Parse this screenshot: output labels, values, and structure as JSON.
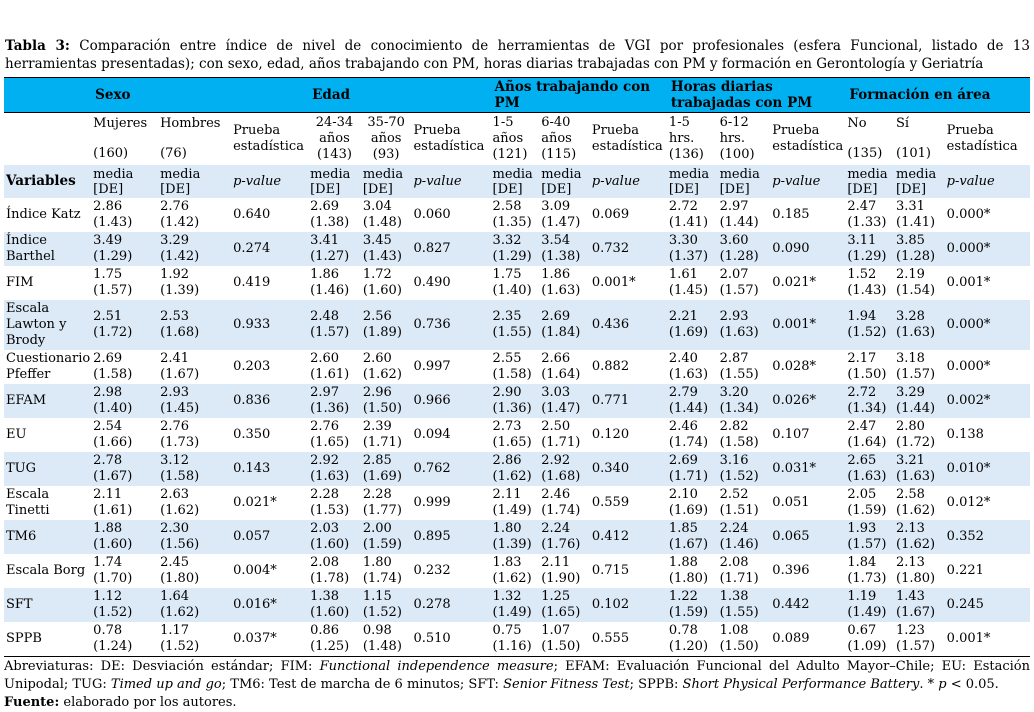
{
  "title": {
    "label": "Tabla 3:",
    "text": " Comparación entre índice de nivel de conocimiento de herramientas de VGI por profesionales (esfera Funcional, listado de 13 herramientas presentadas); con sexo, edad, años trabajando con PM, horas diarias trabajadas con PM y formación en Gerontología y Geriatría"
  },
  "colors": {
    "header_band": "#00b0f0",
    "row_stripe": "#dce9f6"
  },
  "table": {
    "groups": [
      {
        "label": "Sexo"
      },
      {
        "label": "Edad"
      },
      {
        "label": "Años trabajando con PM"
      },
      {
        "label": "Horas diarias trabajadas con PM"
      },
      {
        "label": "Formación en área"
      }
    ],
    "subheaders": [
      {
        "lines": [
          "Mujeres",
          "(160)"
        ],
        "kind": "cat2"
      },
      {
        "lines": [
          "Hombres",
          "(76)"
        ],
        "kind": "cat2"
      },
      {
        "lines": [
          "Prueba",
          "estadística"
        ],
        "kind": "prueba"
      },
      {
        "lines": [
          "24-34",
          "años",
          "(143)"
        ],
        "kind": "cat3c"
      },
      {
        "lines": [
          "35-70",
          "años",
          "(93)"
        ],
        "kind": "cat3c"
      },
      {
        "lines": [
          "Prueba",
          "estadística"
        ],
        "kind": "prueba"
      },
      {
        "lines": [
          "1-5",
          "años",
          "(121)"
        ],
        "kind": "cat3"
      },
      {
        "lines": [
          "6-40",
          "años",
          "(115)"
        ],
        "kind": "cat3"
      },
      {
        "lines": [
          "Prueba",
          "estadística"
        ],
        "kind": "prueba"
      },
      {
        "lines": [
          "1-5",
          "hrs.",
          "(136)"
        ],
        "kind": "cat3"
      },
      {
        "lines": [
          "6-12",
          "hrs.",
          "(100)"
        ],
        "kind": "cat3"
      },
      {
        "lines": [
          "Prueba",
          "estadística"
        ],
        "kind": "prueba"
      },
      {
        "lines": [
          "No",
          "(135)"
        ],
        "kind": "cat2"
      },
      {
        "lines": [
          "Sí",
          "(101)"
        ],
        "kind": "cat2"
      },
      {
        "lines": [
          "Prueba",
          "estadística"
        ],
        "kind": "prueba"
      }
    ],
    "variables_label": "Variables",
    "media_lines": [
      "media",
      "[DE]"
    ],
    "pvalue_label": "p-value",
    "rows": [
      {
        "name_lines": [
          "Índice Katz"
        ],
        "cells": [
          [
            "2.86",
            "(1.43)"
          ],
          [
            "2.76",
            "(1.42)"
          ],
          [
            "0.640"
          ],
          [
            "2.69",
            "(1.38)"
          ],
          [
            "3.04",
            "(1.48)"
          ],
          [
            "0.060"
          ],
          [
            "2.58",
            "(1.35)"
          ],
          [
            "3.09",
            "(1.47)"
          ],
          [
            "0.069"
          ],
          [
            "2.72",
            "(1.41)"
          ],
          [
            "2.97",
            "(1.44)"
          ],
          [
            "0.185"
          ],
          [
            "2.47",
            "(1.33)"
          ],
          [
            "3.31",
            "(1.41)"
          ],
          [
            "0.000*"
          ]
        ]
      },
      {
        "name_lines": [
          "Índice",
          "Barthel"
        ],
        "cells": [
          [
            "3.49",
            "(1.29)"
          ],
          [
            "3.29",
            "(1.42)"
          ],
          [
            "0.274"
          ],
          [
            "3.41",
            "(1.27)"
          ],
          [
            "3.45",
            "(1.43)"
          ],
          [
            "0.827"
          ],
          [
            "3.32",
            "(1.29)"
          ],
          [
            "3.54",
            "(1.38)"
          ],
          [
            "0.732"
          ],
          [
            "3.30",
            "(1.37)"
          ],
          [
            "3.60",
            "(1.28)"
          ],
          [
            "0.090"
          ],
          [
            "3.11",
            "(1.29)"
          ],
          [
            "3.85",
            "(1.28)"
          ],
          [
            "0.000*"
          ]
        ]
      },
      {
        "name_lines": [
          "FIM"
        ],
        "cells": [
          [
            "1.75",
            "(1.57)"
          ],
          [
            "1.92",
            "(1.39)"
          ],
          [
            "0.419"
          ],
          [
            "1.86",
            "(1.46)"
          ],
          [
            "1.72",
            "(1.60)"
          ],
          [
            "0.490"
          ],
          [
            "1.75",
            "(1.40)"
          ],
          [
            "1.86",
            "(1.63)"
          ],
          [
            "0.001*"
          ],
          [
            "1.61",
            "(1.45)"
          ],
          [
            "2.07",
            "(1.57)"
          ],
          [
            "0.021*"
          ],
          [
            "1.52",
            "(1.43)"
          ],
          [
            "2.19",
            "(1.54)"
          ],
          [
            "0.001*"
          ]
        ]
      },
      {
        "name_lines": [
          "Escala",
          "Lawton y",
          "Brody"
        ],
        "cells": [
          [
            "2.51",
            "(1.72)"
          ],
          [
            "2.53",
            "(1.68)"
          ],
          [
            "0.933"
          ],
          [
            "2.48",
            "(1.57)"
          ],
          [
            "2.56",
            "(1.89)"
          ],
          [
            "0.736"
          ],
          [
            "2.35",
            "(1.55)"
          ],
          [
            "2.69",
            "(1.84)"
          ],
          [
            "0.436"
          ],
          [
            "2.21",
            "(1.69)"
          ],
          [
            "2.93",
            "(1.63)"
          ],
          [
            "0.001*"
          ],
          [
            "1.94",
            "(1.52)"
          ],
          [
            "3.28",
            "(1.63)"
          ],
          [
            "0.000*"
          ]
        ]
      },
      {
        "name_lines": [
          "Cuestionario",
          " Pfeffer"
        ],
        "cells": [
          [
            "2.69",
            "(1.58)"
          ],
          [
            "2.41",
            "(1.67)"
          ],
          [
            "0.203"
          ],
          [
            "2.60",
            "(1.61)"
          ],
          [
            "2.60",
            "(1.62)"
          ],
          [
            "0.997"
          ],
          [
            "2.55",
            "(1.58)"
          ],
          [
            "2.66",
            "(1.64)"
          ],
          [
            "0.882"
          ],
          [
            "2.40",
            "(1.63)"
          ],
          [
            "2.87",
            "(1.55)"
          ],
          [
            "0.028*"
          ],
          [
            "2.17",
            "(1.50)"
          ],
          [
            "3.18",
            "(1.57)"
          ],
          [
            "0.000*"
          ]
        ]
      },
      {
        "name_lines": [
          "EFAM"
        ],
        "cells": [
          [
            "2.98",
            "(1.40)"
          ],
          [
            "2.93",
            "(1.45)"
          ],
          [
            "0.836"
          ],
          [
            "2.97",
            "(1.36)"
          ],
          [
            "2.96",
            "(1.50)"
          ],
          [
            "0.966"
          ],
          [
            "2.90",
            "(1.36)"
          ],
          [
            "3.03",
            "(1.47)"
          ],
          [
            "0.771"
          ],
          [
            "2.79",
            "(1.44)"
          ],
          [
            "3.20",
            "(1.34)"
          ],
          [
            "0.026*"
          ],
          [
            "2.72",
            "(1.34)"
          ],
          [
            "3.29",
            "(1.44)"
          ],
          [
            "0.002*"
          ]
        ]
      },
      {
        "name_lines": [
          "EU"
        ],
        "cells": [
          [
            "2.54",
            "(1.66)"
          ],
          [
            "2.76",
            "(1.73)"
          ],
          [
            "0.350"
          ],
          [
            "2.76",
            "(1.65)"
          ],
          [
            "2.39",
            "(1.71)"
          ],
          [
            "0.094"
          ],
          [
            "2.73",
            "(1.65)"
          ],
          [
            "2.50",
            "(1.71)"
          ],
          [
            "0.120"
          ],
          [
            "2.46",
            "(1.74)"
          ],
          [
            "2.82",
            "(1.58)"
          ],
          [
            "0.107"
          ],
          [
            "2.47",
            "(1.64)"
          ],
          [
            "2.80",
            "(1.72)"
          ],
          [
            "0.138"
          ]
        ]
      },
      {
        "name_lines": [
          "TUG"
        ],
        "cells": [
          [
            "2.78",
            "(1.67)"
          ],
          [
            "3.12",
            "(1.58)"
          ],
          [
            "0.143"
          ],
          [
            "2.92",
            "(1.63)"
          ],
          [
            "2.85",
            "(1.69)"
          ],
          [
            "0.762"
          ],
          [
            "2.86",
            "(1.62)"
          ],
          [
            "2.92",
            "(1.68)"
          ],
          [
            "0.340"
          ],
          [
            "2.69",
            "(1.71)"
          ],
          [
            "3.16",
            "(1.52)"
          ],
          [
            "0.031*"
          ],
          [
            "2.65",
            "(1.63)"
          ],
          [
            "3.21",
            "(1.63)"
          ],
          [
            "0.010*"
          ]
        ]
      },
      {
        "name_lines": [
          "Escala",
          "Tinetti"
        ],
        "cells": [
          [
            "2.11",
            "(1.61)"
          ],
          [
            "2.63",
            "(1.62)"
          ],
          [
            "0.021*"
          ],
          [
            "2.28",
            "(1.53)"
          ],
          [
            "2.28",
            "(1.77)"
          ],
          [
            "0.999"
          ],
          [
            "2.11",
            "(1.49)"
          ],
          [
            "2.46",
            "(1.74)"
          ],
          [
            "0.559"
          ],
          [
            "2.10",
            "(1.69)"
          ],
          [
            "2.52",
            "(1.51)"
          ],
          [
            "0.051"
          ],
          [
            "2.05",
            "(1.59)"
          ],
          [
            "2.58",
            "(1.62)"
          ],
          [
            "0.012*"
          ]
        ]
      },
      {
        "name_lines": [
          "TM6"
        ],
        "cells": [
          [
            "1.88",
            "(1.60)"
          ],
          [
            "2.30",
            "(1.56)"
          ],
          [
            "0.057"
          ],
          [
            "2.03",
            "(1.60)"
          ],
          [
            "2.00",
            "(1.59)"
          ],
          [
            "0.895"
          ],
          [
            "1.80",
            "(1.39)"
          ],
          [
            "2.24",
            "(1.76)"
          ],
          [
            "0.412"
          ],
          [
            "1.85",
            "(1.67)"
          ],
          [
            "2.24",
            "(1.46)"
          ],
          [
            "0.065"
          ],
          [
            "1.93",
            "(1.57)"
          ],
          [
            "2.13",
            "(1.62)"
          ],
          [
            "0.352"
          ]
        ]
      },
      {
        "name_lines": [
          "Escala Borg"
        ],
        "cells": [
          [
            "1.74",
            "(1.70)"
          ],
          [
            "2.45",
            "(1.80)"
          ],
          [
            "0.004*"
          ],
          [
            "2.08",
            "(1.78)"
          ],
          [
            "1.80",
            "(1.74)"
          ],
          [
            "0.232"
          ],
          [
            "1.83",
            "(1.62)"
          ],
          [
            "2.11",
            "(1.90)"
          ],
          [
            "0.715"
          ],
          [
            "1.88",
            "(1.80)"
          ],
          [
            "2.08",
            "(1.71)"
          ],
          [
            "0.396"
          ],
          [
            "1.84",
            "(1.73)"
          ],
          [
            "2.13",
            "(1.80)"
          ],
          [
            "0.221"
          ]
        ]
      },
      {
        "name_lines": [
          "SFT"
        ],
        "cells": [
          [
            "1.12",
            "(1.52)"
          ],
          [
            "1.64",
            "(1.62)"
          ],
          [
            "0.016*"
          ],
          [
            "1.38",
            "(1.60)"
          ],
          [
            "1.15",
            "(1.52)"
          ],
          [
            "0.278"
          ],
          [
            "1.32",
            "(1.49)"
          ],
          [
            "1.25",
            "(1.65)"
          ],
          [
            "0.102"
          ],
          [
            "1.22",
            "(1.59)"
          ],
          [
            "1.38",
            "(1.55)"
          ],
          [
            "0.442"
          ],
          [
            "1.19",
            "(1.49)"
          ],
          [
            "1.43",
            "(1.67)"
          ],
          [
            "0.245"
          ]
        ]
      },
      {
        "name_lines": [
          "SPPB"
        ],
        "cells": [
          [
            "0.78",
            "(1.24)"
          ],
          [
            "1.17",
            "(1.52)"
          ],
          [
            "0.037*"
          ],
          [
            "0.86",
            "(1.25)"
          ],
          [
            "0.98",
            "(1.48)"
          ],
          [
            "0.510"
          ],
          [
            "0.75",
            "(1.16)"
          ],
          [
            "1.07",
            "(1.50)"
          ],
          [
            "0.555"
          ],
          [
            "0.78",
            "(1.20)"
          ],
          [
            "1.08",
            "(1.50)"
          ],
          [
            "0.089"
          ],
          [
            "0.67",
            "(1.09)"
          ],
          [
            "1.23",
            "(1.57)"
          ],
          [
            "0.001*"
          ]
        ]
      }
    ]
  },
  "footnotes": {
    "abbreviations": [
      {
        "t": "Abreviaturas: DE: Desviación estándar; FIM: "
      },
      {
        "t": "Functional independence measure",
        "i": true
      },
      {
        "t": "; EFAM: Evaluación Funcional del Adulto Mayor–Chile; EU: Estación Unipodal; TUG: "
      },
      {
        "t": "Timed up and go",
        "i": true
      },
      {
        "t": "; TM6: Test de marcha de 6 minutos; SFT: "
      },
      {
        "t": "Senior Fitness Test",
        "i": true
      },
      {
        "t": "; SPPB: "
      },
      {
        "t": "Short Physical Performance Battery",
        "i": true
      },
      {
        "t": ". * "
      },
      {
        "t": "p",
        "i": true
      },
      {
        "t": " < 0.05."
      }
    ],
    "source_label": "Fuente:",
    "source_text": " elaborado por los autores."
  }
}
